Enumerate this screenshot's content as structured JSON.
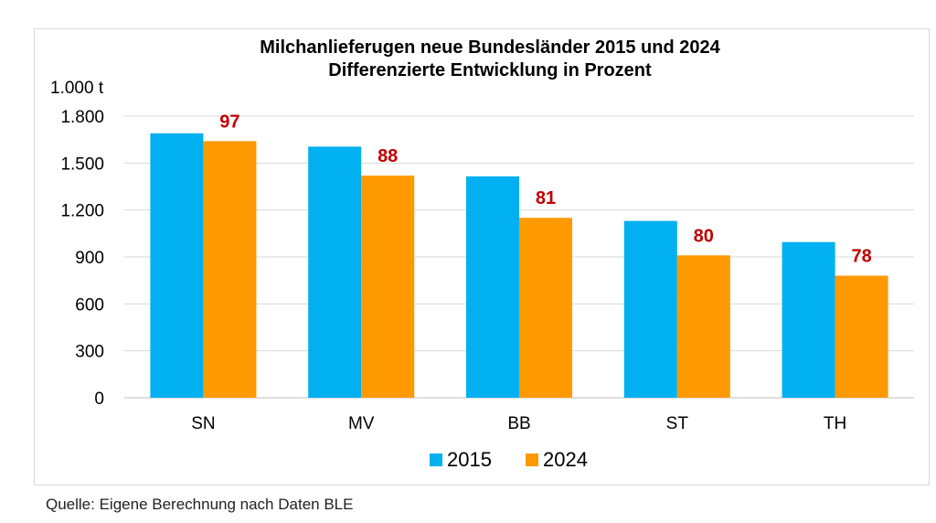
{
  "chart_data": {
    "type": "bar",
    "title": [
      "Milchanlieferugen neue Bundesländer 2015 und 2024",
      "Differenzierte Entwicklung in Prozent"
    ],
    "ylabel": "1.000 t",
    "ylim": [
      0,
      1800
    ],
    "yticks": [
      0,
      300,
      600,
      900,
      1200,
      1500,
      1800
    ],
    "ytick_labels": [
      "0",
      "300",
      "600",
      "900",
      "1.200",
      "1.500",
      "1.800"
    ],
    "categories": [
      "SN",
      "MV",
      "BB",
      "ST",
      "TH"
    ],
    "series": [
      {
        "name": "2015",
        "color": "#00b0f0",
        "values": [
          1690,
          1605,
          1415,
          1130,
          995
        ]
      },
      {
        "name": "2024",
        "color": "#ff9900",
        "values": [
          1640,
          1420,
          1150,
          910,
          780
        ]
      }
    ],
    "annotations": [
      "97",
      "88",
      "81",
      "80",
      "78"
    ],
    "annotation_color": "#c00000",
    "grid": true,
    "legend": "bottom-center"
  },
  "source": "Quelle: Eigene Berechnung nach Daten BLE"
}
